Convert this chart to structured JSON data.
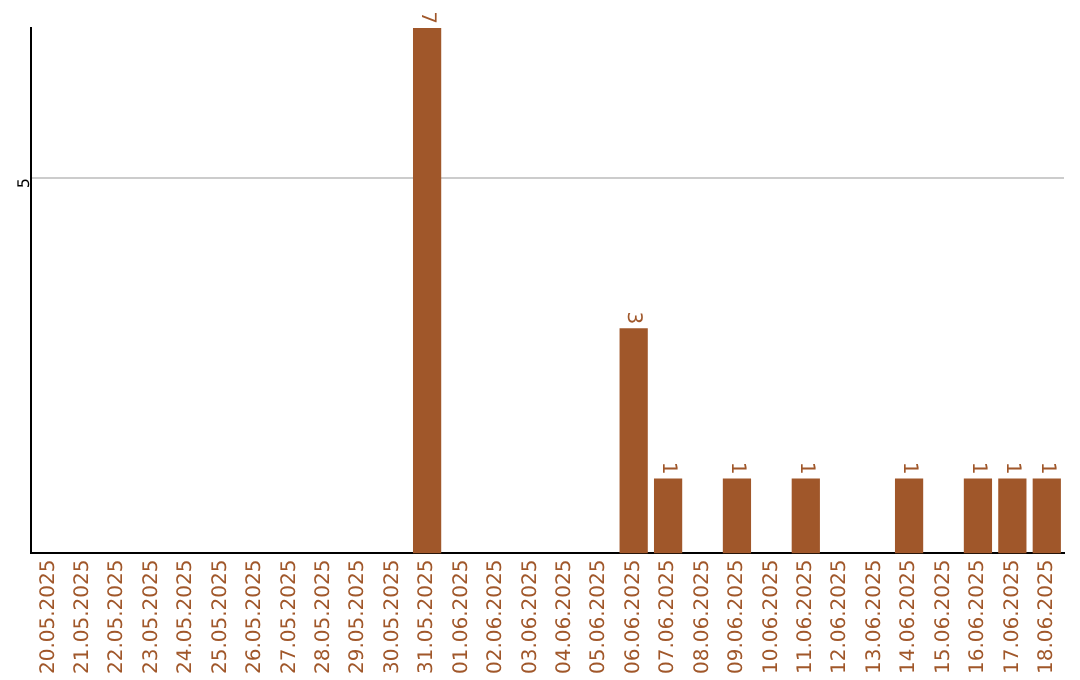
{
  "chart_data": {
    "type": "bar",
    "categories": [
      "20.05.2025",
      "21.05.2025",
      "22.05.2025",
      "23.05.2025",
      "24.05.2025",
      "25.05.2025",
      "26.05.2025",
      "27.05.2025",
      "28.05.2025",
      "29.05.2025",
      "30.05.2025",
      "31.05.2025",
      "01.06.2025",
      "02.06.2025",
      "03.06.2025",
      "04.06.2025",
      "05.06.2025",
      "06.06.2025",
      "07.06.2025",
      "08.06.2025",
      "09.06.2025",
      "10.06.2025",
      "11.06.2025",
      "12.06.2025",
      "13.06.2025",
      "14.06.2025",
      "15.06.2025",
      "16.06.2025",
      "17.06.2025",
      "18.06.2025"
    ],
    "values": [
      0,
      0,
      0,
      0,
      0,
      0,
      0,
      0,
      0,
      0,
      0,
      7,
      0,
      0,
      0,
      0,
      0,
      3,
      1,
      0,
      1,
      0,
      1,
      0,
      0,
      1,
      0,
      1,
      1,
      1
    ],
    "value_labels": [
      null,
      null,
      null,
      null,
      null,
      null,
      null,
      null,
      null,
      null,
      null,
      "7",
      null,
      null,
      null,
      null,
      null,
      "3",
      "1",
      null,
      "1",
      null,
      "1",
      null,
      null,
      "1",
      null,
      "1",
      "1",
      "1"
    ],
    "color": "#a0572a",
    "ylim": [
      0,
      7
    ],
    "yticks": [
      5
    ],
    "grid": "y",
    "legend": false
  }
}
